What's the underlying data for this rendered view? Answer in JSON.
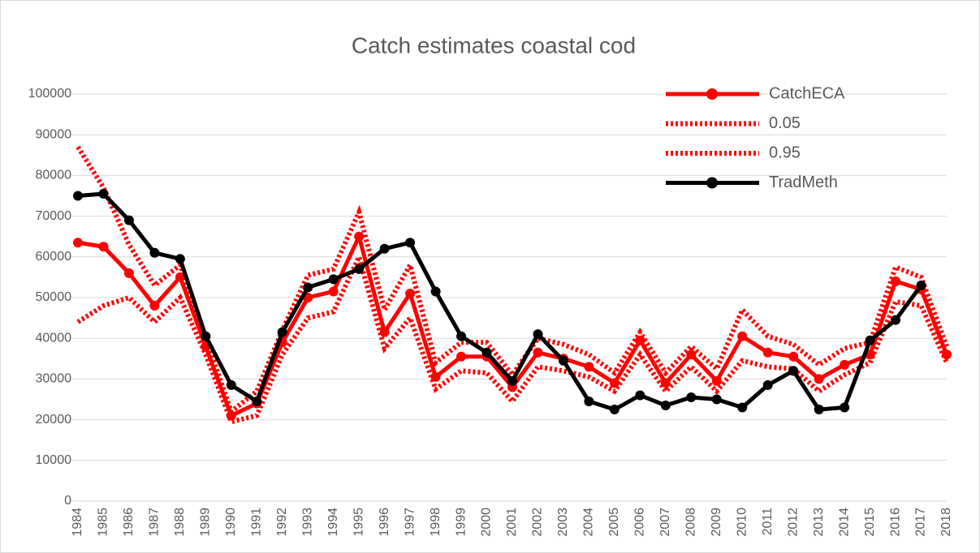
{
  "chart_data": {
    "type": "line",
    "title": "Catch estimates coastal cod",
    "categories": [
      "1984",
      "1985",
      "1986",
      "1987",
      "1988",
      "1989",
      "1990",
      "1991",
      "1992",
      "1993",
      "1994",
      "1995",
      "1996",
      "1997",
      "1998",
      "1999",
      "2000",
      "2001",
      "2002",
      "2003",
      "2004",
      "2005",
      "2006",
      "2007",
      "2008",
      "2009",
      "2010",
      "2011",
      "2012",
      "2013",
      "2014",
      "2015",
      "2016",
      "2017",
      "2018"
    ],
    "series": [
      {
        "name": "CatchECA",
        "color": "#ff0000",
        "line_style": "solid",
        "markers": true,
        "values": [
          63500,
          62500,
          56000,
          48000,
          55000,
          38000,
          21000,
          24000,
          39000,
          50000,
          51500,
          65000,
          41500,
          51000,
          30500,
          35500,
          35500,
          28000,
          36500,
          35000,
          33000,
          29000,
          39500,
          29000,
          36000,
          29500,
          40500,
          36500,
          35500,
          30000,
          33500,
          36000,
          54000,
          52000,
          36000
        ]
      },
      {
        "name": "0.05",
        "color": "#ff0000",
        "line_style": "dotted",
        "markers": false,
        "values": [
          44000,
          48000,
          50000,
          44000,
          50000,
          36000,
          19500,
          21000,
          36000,
          45000,
          46500,
          60000,
          37500,
          45000,
          27500,
          32000,
          31500,
          24500,
          33000,
          32000,
          30500,
          27000,
          36000,
          27000,
          33000,
          27000,
          34500,
          33000,
          32500,
          27000,
          31000,
          34000,
          49000,
          48000,
          34000
        ]
      },
      {
        "name": "0.95",
        "color": "#ff0000",
        "line_style": "dotted",
        "markers": false,
        "values": [
          87000,
          77000,
          63000,
          53000,
          58000,
          40000,
          22000,
          27000,
          42000,
          55500,
          57000,
          71000,
          47000,
          58000,
          34000,
          39000,
          39000,
          31000,
          40000,
          38500,
          36000,
          31500,
          41500,
          31500,
          38000,
          32500,
          47000,
          40500,
          38500,
          33500,
          37500,
          39000,
          57500,
          55000,
          38000
        ]
      },
      {
        "name": "TradMeth",
        "color": "#000000",
        "line_style": "solid",
        "markers": true,
        "values": [
          75000,
          75500,
          69000,
          61000,
          59500,
          40500,
          28500,
          24500,
          41500,
          52500,
          54500,
          57000,
          62000,
          63500,
          51500,
          40500,
          36500,
          29500,
          41000,
          34500,
          24500,
          22500,
          26000,
          23500,
          25500,
          25000,
          23000,
          28500,
          32000,
          22500,
          23000,
          39500,
          44500,
          53000,
          null
        ]
      }
    ],
    "ylim": [
      0,
      100000
    ],
    "yticks": [
      0,
      10000,
      20000,
      30000,
      40000,
      50000,
      60000,
      70000,
      80000,
      90000,
      100000
    ],
    "grid": true,
    "legend": "top-right"
  }
}
